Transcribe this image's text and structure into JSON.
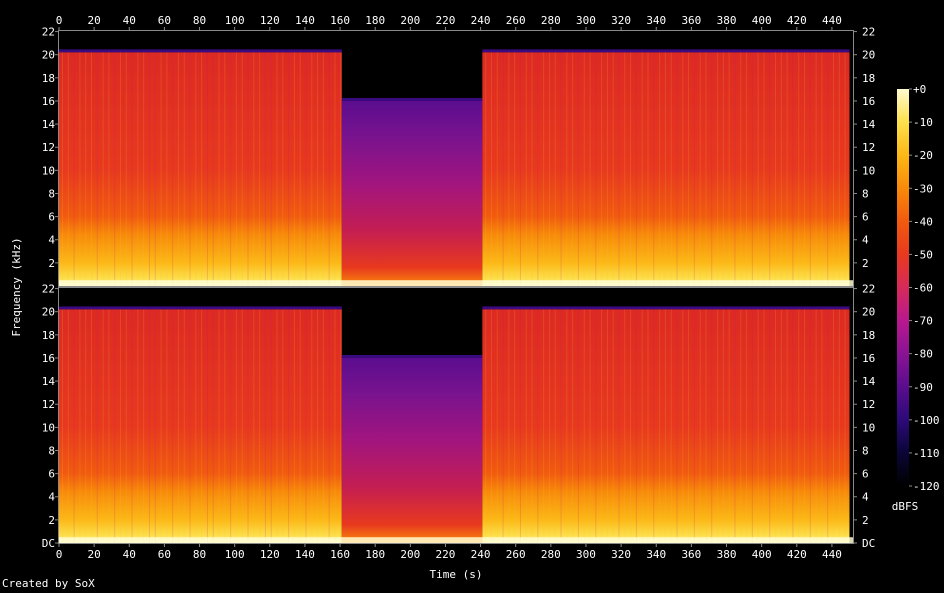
{
  "chart_data": {
    "type": "heatmap",
    "subtype": "spectrogram",
    "xlabel": "Time (s)",
    "ylabel": "Frequency (kHz)",
    "xlim": [
      0,
      452
    ],
    "ylim": [
      0,
      22.05
    ],
    "x_ticks": [
      0,
      20,
      40,
      60,
      80,
      100,
      120,
      140,
      160,
      180,
      200,
      220,
      240,
      260,
      280,
      300,
      320,
      340,
      360,
      380,
      400,
      420,
      440
    ],
    "y_ticks": [
      {
        "value": 0,
        "label": "DC"
      },
      {
        "value": 2,
        "label": "2"
      },
      {
        "value": 4,
        "label": "4"
      },
      {
        "value": 6,
        "label": "6"
      },
      {
        "value": 8,
        "label": "8"
      },
      {
        "value": 10,
        "label": "10"
      },
      {
        "value": 12,
        "label": "12"
      },
      {
        "value": 14,
        "label": "14"
      },
      {
        "value": 16,
        "label": "16"
      },
      {
        "value": 18,
        "label": "18"
      },
      {
        "value": 20,
        "label": "20"
      },
      {
        "value": 22,
        "label": "22"
      }
    ],
    "channels": 2,
    "segments": [
      {
        "t_start": 0,
        "t_end": 161,
        "cutoff_khz": 20.2,
        "level": "loud"
      },
      {
        "t_start": 161,
        "t_end": 241,
        "cutoff_khz": 16.0,
        "level": "quiet"
      },
      {
        "t_start": 241,
        "t_end": 450,
        "cutoff_khz": 20.2,
        "level": "loud"
      }
    ],
    "colorbar": {
      "label": "dBFS",
      "range": [
        -120,
        0
      ],
      "ticks": [
        {
          "value": 0,
          "label": "+0"
        },
        {
          "value": -10,
          "label": "-10"
        },
        {
          "value": -20,
          "label": "-20"
        },
        {
          "value": -30,
          "label": "-30"
        },
        {
          "value": -40,
          "label": "-40"
        },
        {
          "value": -50,
          "label": "-50"
        },
        {
          "value": -60,
          "label": "-60"
        },
        {
          "value": -70,
          "label": "-70"
        },
        {
          "value": -80,
          "label": "-80"
        },
        {
          "value": -90,
          "label": "-90"
        },
        {
          "value": -100,
          "label": "-100"
        },
        {
          "value": -110,
          "label": "-110"
        },
        {
          "value": -120,
          "label": "-120"
        }
      ],
      "colors": [
        "#000000",
        "#0a0536",
        "#2c0a78",
        "#5a0d8e",
        "#8a1394",
        "#b8188e",
        "#d62a5a",
        "#e8391e",
        "#f15a0f",
        "#f88a0a",
        "#fcb816",
        "#fde04c",
        "#fffbd0"
      ]
    },
    "colors": {
      "background": "#000000",
      "frame": "#8a8a8a",
      "text": "#ffffff"
    }
  },
  "footer": {
    "credit": "Created by SoX"
  }
}
